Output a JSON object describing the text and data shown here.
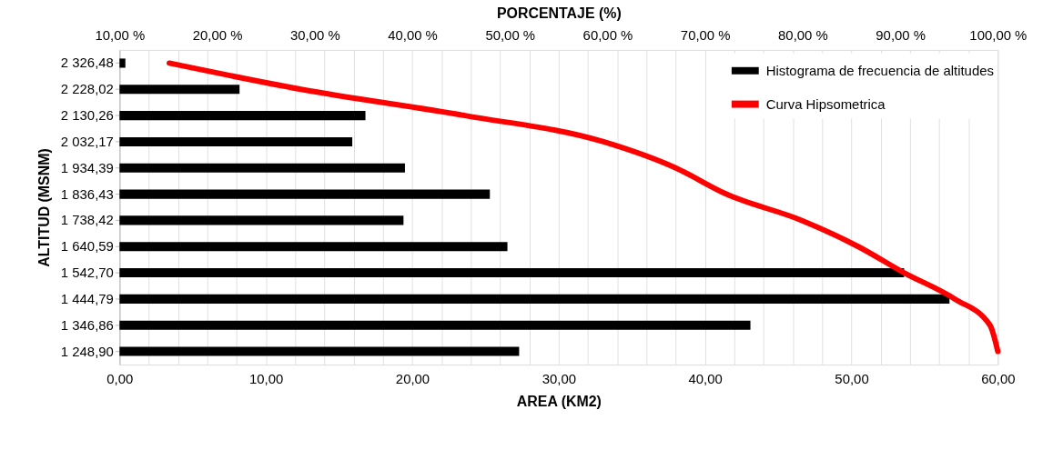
{
  "chart_data": {
    "type": "bar",
    "orientation": "horizontal",
    "xlabel": "AREA (KM2)",
    "x2label": "PORCENTAJE (%)",
    "ylabel": "ALTITUD (MSNM)",
    "categories": [
      "2 326,48",
      "2 228,02",
      "2 130,26",
      "2 032,17",
      "1 934,39",
      "1 836,43",
      "1 738,42",
      "1 640,59",
      "1 542,70",
      "1 444,79",
      "1 346,86",
      "1 248,90"
    ],
    "series": [
      {
        "name": "Histograma de frecuencia de altitudes",
        "color": "#000000",
        "values": [
          0.4,
          8.2,
          16.8,
          15.9,
          19.5,
          25.3,
          19.4,
          26.5,
          53.6,
          56.7,
          43.1,
          27.3
        ]
      },
      {
        "name": "Curva Hipsometrica",
        "type": "line",
        "axis": "x2",
        "color": "#ff0000",
        "values": [
          15.1,
          28.6,
          45.4,
          59.6,
          67.0,
          72.2,
          79.9,
          85.7,
          90.4,
          95.6,
          99.2,
          100.0
        ]
      }
    ],
    "xlim": [
      0,
      60
    ],
    "xticks": [
      {
        "value": 0,
        "label": "0,00"
      },
      {
        "value": 2,
        "label": null
      },
      {
        "value": 4,
        "label": null
      },
      {
        "value": 6,
        "label": null
      },
      {
        "value": 8,
        "label": null
      },
      {
        "value": 10,
        "label": "10,00"
      },
      {
        "value": 12,
        "label": null
      },
      {
        "value": 14,
        "label": null
      },
      {
        "value": 16,
        "label": null
      },
      {
        "value": 18,
        "label": null
      },
      {
        "value": 20,
        "label": "20,00"
      },
      {
        "value": 22,
        "label": null
      },
      {
        "value": 24,
        "label": null
      },
      {
        "value": 26,
        "label": null
      },
      {
        "value": 28,
        "label": null
      },
      {
        "value": 30,
        "label": "30,00"
      },
      {
        "value": 32,
        "label": null
      },
      {
        "value": 34,
        "label": null
      },
      {
        "value": 36,
        "label": null
      },
      {
        "value": 38,
        "label": null
      },
      {
        "value": 40,
        "label": "40,00"
      },
      {
        "value": 42,
        "label": null
      },
      {
        "value": 44,
        "label": null
      },
      {
        "value": 46,
        "label": null
      },
      {
        "value": 48,
        "label": null
      },
      {
        "value": 50,
        "label": "50,00"
      },
      {
        "value": 52,
        "label": null
      },
      {
        "value": 54,
        "label": null
      },
      {
        "value": 56,
        "label": null
      },
      {
        "value": 58,
        "label": null
      },
      {
        "value": 60,
        "label": "60,00"
      }
    ],
    "x2lim": [
      10,
      100
    ],
    "x2ticks": [
      {
        "value": 10,
        "label": "10,00 %"
      },
      {
        "value": 20,
        "label": "20,00 %"
      },
      {
        "value": 30,
        "label": "30,00 %"
      },
      {
        "value": 40,
        "label": "40,00 %"
      },
      {
        "value": 50,
        "label": "50,00 %"
      },
      {
        "value": 60,
        "label": "60,00 %"
      },
      {
        "value": 70,
        "label": "70,00 %"
      },
      {
        "value": 80,
        "label": "80,00 %"
      },
      {
        "value": 90,
        "label": "90,00 %"
      },
      {
        "value": 100,
        "label": "100,00 %"
      }
    ],
    "grid": "x",
    "legend": "top right"
  }
}
